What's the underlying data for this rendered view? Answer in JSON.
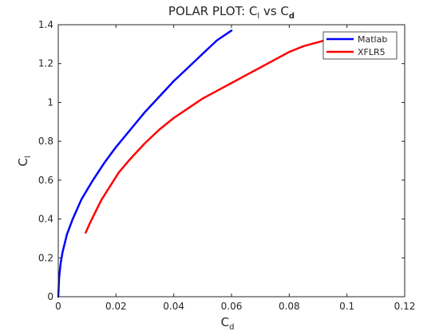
{
  "chart_data": {
    "type": "line",
    "title": "POLAR PLOT: C",
    "title_sub_1": "l",
    "title_mid": " vs C",
    "title_sub_2": "d",
    "xlabel": "C",
    "xlabel_sub": "d",
    "ylabel": "C",
    "ylabel_sub": "l",
    "xlim": [
      0,
      0.12
    ],
    "ylim": [
      0,
      1.4
    ],
    "xticks": [
      0,
      0.02,
      0.04,
      0.06,
      0.08,
      0.1,
      0.12
    ],
    "xtick_labels": [
      "0",
      "0.02",
      "0.04",
      "0.06",
      "0.08",
      "0.1",
      "0.12"
    ],
    "yticks": [
      0,
      0.2,
      0.4,
      0.6,
      0.8,
      1.0,
      1.2,
      1.4
    ],
    "ytick_labels": [
      "0",
      "0.2",
      "0.4",
      "0.6",
      "0.8",
      "1",
      "1.2",
      "1.4"
    ],
    "grid": false,
    "legend_position": "top-right",
    "series": [
      {
        "name": "Matlab",
        "color": "#0000ff",
        "x": [
          0.0,
          0.0003,
          0.0008,
          0.0015,
          0.003,
          0.005,
          0.008,
          0.012,
          0.016,
          0.02,
          0.025,
          0.03,
          0.035,
          0.04,
          0.045,
          0.05,
          0.055,
          0.06
        ],
        "y": [
          0.0,
          0.1,
          0.17,
          0.23,
          0.32,
          0.4,
          0.5,
          0.6,
          0.69,
          0.77,
          0.86,
          0.95,
          1.03,
          1.11,
          1.18,
          1.25,
          1.32,
          1.37
        ]
      },
      {
        "name": "XFLR5",
        "color": "#ff0000",
        "x": [
          0.0095,
          0.011,
          0.013,
          0.015,
          0.018,
          0.021,
          0.025,
          0.03,
          0.035,
          0.04,
          0.045,
          0.05,
          0.055,
          0.06,
          0.065,
          0.07,
          0.075,
          0.08,
          0.085,
          0.09,
          0.095,
          0.1,
          0.105
        ],
        "y": [
          0.33,
          0.38,
          0.44,
          0.5,
          0.57,
          0.64,
          0.71,
          0.79,
          0.86,
          0.92,
          0.97,
          1.02,
          1.06,
          1.1,
          1.14,
          1.18,
          1.22,
          1.26,
          1.29,
          1.31,
          1.33,
          1.35,
          1.36
        ]
      }
    ]
  }
}
